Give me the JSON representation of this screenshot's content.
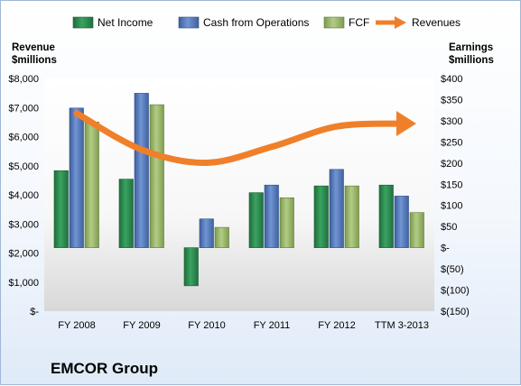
{
  "chart_data": {
    "type": "bar",
    "company": "EMCOR Group",
    "categories": [
      "FY 2008",
      "FY 2009",
      "FY 2010",
      "FY 2011",
      "FY 2012",
      "TTM 3-2013"
    ],
    "left_axis": {
      "label_line1": "Revenue",
      "label_line2": "$millions",
      "range": [
        0,
        8000
      ],
      "ticks": [
        "$-",
        "$1,000",
        "$2,000",
        "$3,000",
        "$4,000",
        "$5,000",
        "$6,000",
        "$7,000",
        "$8,000"
      ]
    },
    "right_axis": {
      "label_line1": "Earnings",
      "label_line2": "$millions",
      "range": [
        -150,
        400
      ],
      "ticks": [
        "$(150)",
        "$(100)",
        "$(50)",
        "$-",
        "$50",
        "$100",
        "$150",
        "$200",
        "$250",
        "$300",
        "$350",
        "$400"
      ]
    },
    "series": [
      {
        "name": "Net Income",
        "axis": "right",
        "color": "#2e8b4f",
        "values": [
          182,
          162,
          -90,
          130,
          146,
          148
        ]
      },
      {
        "name": "Cash from Operations",
        "axis": "right",
        "color": "#5a7fbf",
        "values": [
          330,
          365,
          68,
          148,
          185,
          122
        ]
      },
      {
        "name": "FCF",
        "axis": "right",
        "color": "#9ab86a",
        "values": [
          297,
          338,
          48,
          118,
          146,
          83
        ]
      },
      {
        "name": "Revenues",
        "axis": "left",
        "type": "line",
        "color": "#f07f2a",
        "values": [
          6800,
          5550,
          5100,
          5650,
          6350,
          6450
        ]
      }
    ],
    "legend_position": "top"
  }
}
